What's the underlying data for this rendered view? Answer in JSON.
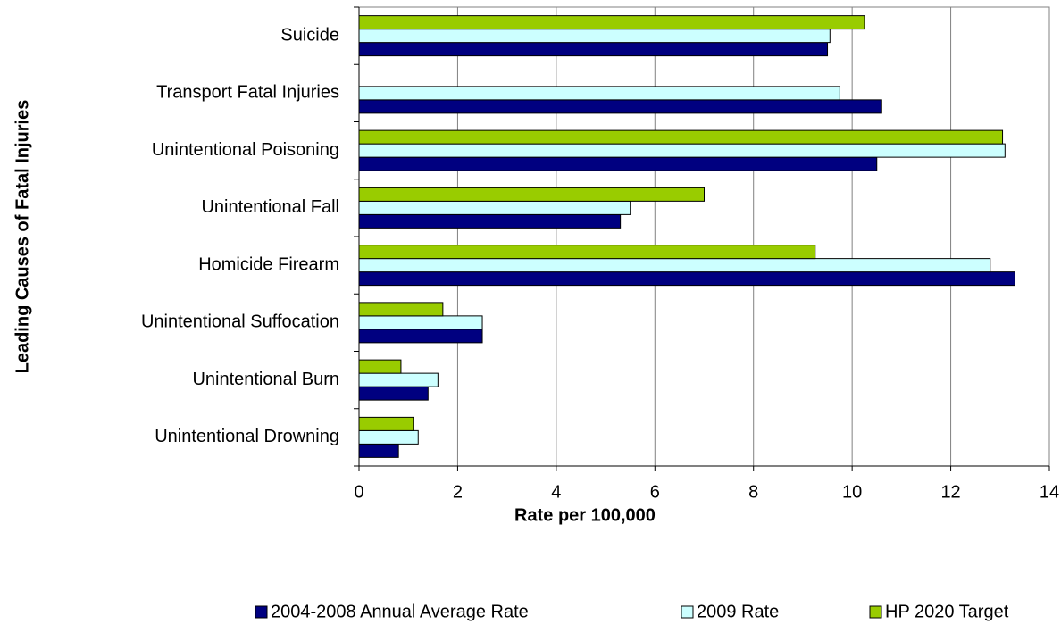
{
  "chart_data": {
    "type": "bar",
    "orientation": "horizontal",
    "x_label": "Rate per 100,000",
    "y_label": "Leading Causes of Fatal Injuries",
    "categories": [
      "Suicide",
      "Transport Fatal Injuries",
      "Unintentional Poisoning",
      "Unintentional Fall",
      "Homicide Firearm",
      "Unintentional Suffocation",
      "Unintentional Burn",
      "Unintentional Drowning"
    ],
    "series": [
      {
        "name": "2004-2008 Annual Average Rate",
        "color": "#000080",
        "values": [
          9.5,
          10.6,
          10.5,
          5.3,
          13.3,
          2.5,
          1.4,
          0.8
        ]
      },
      {
        "name": "2009 Rate",
        "color": "#ccffff",
        "values": [
          9.55,
          9.75,
          13.1,
          5.5,
          12.8,
          2.5,
          1.6,
          1.2
        ]
      },
      {
        "name": "HP 2020 Target",
        "color": "#99cc00",
        "values": [
          10.25,
          null,
          13.05,
          7.0,
          9.25,
          1.7,
          0.85,
          1.1
        ]
      }
    ],
    "xlim": [
      0,
      14
    ],
    "xticks": [
      0,
      2,
      4,
      6,
      8,
      10,
      12,
      14
    ],
    "grid": true,
    "legend": "bottom"
  }
}
